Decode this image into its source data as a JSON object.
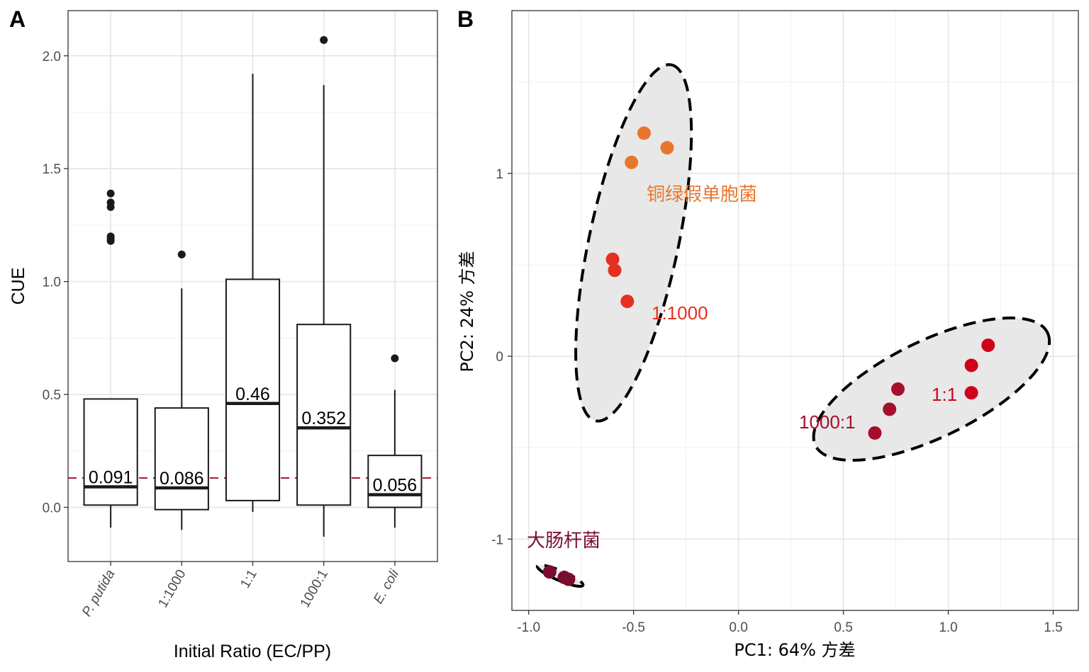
{
  "chart_data": [
    {
      "panel": "A",
      "type": "box",
      "title": "",
      "xlabel": "Initial Ratio (EC/PP)",
      "ylabel": "CUE",
      "ylim": [
        -0.24,
        2.2
      ],
      "yticks": [
        0.0,
        0.5,
        1.0,
        1.5,
        2.0
      ],
      "ytick_labels": [
        "0.0",
        "0.5",
        "1.0",
        "1.5",
        "2.0"
      ],
      "categories": [
        "P. putida",
        "1:1000",
        "1:1",
        "1000:1",
        "E. coli"
      ],
      "boxes": [
        {
          "category": "P. putida",
          "whisker_low": -0.09,
          "q1": 0.01,
          "median": 0.091,
          "q3": 0.48,
          "whisker_high": 0.48,
          "outliers": [
            1.39,
            1.35,
            1.33,
            1.2,
            1.19,
            1.18
          ],
          "median_label": "0.091"
        },
        {
          "category": "1:1000",
          "whisker_low": -0.1,
          "q1": -0.01,
          "median": 0.086,
          "q3": 0.44,
          "whisker_high": 0.97,
          "outliers": [
            1.12
          ],
          "median_label": "0.086"
        },
        {
          "category": "1:1",
          "whisker_low": -0.02,
          "q1": 0.03,
          "median": 0.46,
          "q3": 1.01,
          "whisker_high": 1.92,
          "outliers": [],
          "median_label": "0.46"
        },
        {
          "category": "1000:1",
          "whisker_low": -0.13,
          "q1": 0.01,
          "median": 0.352,
          "q3": 0.81,
          "whisker_high": 1.87,
          "outliers": [
            2.07
          ],
          "median_label": "0.352"
        },
        {
          "category": "E. coli",
          "whisker_low": -0.09,
          "q1": 0.0,
          "median": 0.056,
          "q3": 0.23,
          "whisker_high": 0.52,
          "outliers": [
            0.66
          ],
          "median_label": "0.056"
        }
      ],
      "reference_line": {
        "y": 0.13,
        "color": "#b2182b",
        "style": "dashed"
      }
    },
    {
      "panel": "B",
      "type": "scatter",
      "title": "",
      "xlabel": "PC1: 64% 方差",
      "ylabel": "PC2: 24% 方差",
      "xlim": [
        -1.08,
        1.62
      ],
      "ylim": [
        -1.39,
        1.89
      ],
      "xticks": [
        -1.0,
        -0.5,
        0.0,
        0.5,
        1.0,
        1.5
      ],
      "xtick_labels": [
        "-1.0",
        "-0.5",
        "0.0",
        "0.5",
        "1.0",
        "1.5"
      ],
      "yticks": [
        -1,
        0,
        1
      ],
      "ytick_labels": [
        "-1",
        "0",
        "1"
      ],
      "series": [
        {
          "name": "铜绿假单胞菌",
          "color": "#e8772e",
          "points": [
            [
              -0.45,
              1.22
            ],
            [
              -0.34,
              1.14
            ],
            [
              -0.51,
              1.06
            ]
          ]
        },
        {
          "name": "1:1000",
          "color": "#e6301f",
          "points": [
            [
              -0.6,
              0.53
            ],
            [
              -0.59,
              0.47
            ],
            [
              -0.53,
              0.3
            ]
          ]
        },
        {
          "name": "1:1",
          "color": "#d0021b",
          "points": [
            [
              1.19,
              0.06
            ],
            [
              1.11,
              -0.05
            ],
            [
              1.11,
              -0.2
            ]
          ]
        },
        {
          "name": "1000:1",
          "color": "#a50f2d",
          "points": [
            [
              0.76,
              -0.18
            ],
            [
              0.72,
              -0.29
            ],
            [
              0.65,
              -0.42
            ]
          ]
        },
        {
          "name": "大肠杆菌",
          "color": "#7a0c2e",
          "points": [
            [
              -0.9,
              -1.18
            ],
            [
              -0.83,
              -1.21
            ],
            [
              -0.81,
              -1.22
            ]
          ]
        }
      ],
      "ellipses": [
        {
          "group": "铜绿假单胞菌 + 1:1000",
          "center": [
            -0.5,
            0.62
          ],
          "style": "dashed",
          "fill": "#e8e8e8"
        },
        {
          "group": "1:1 + 1000:1",
          "center": [
            0.92,
            -0.18
          ],
          "style": "dashed",
          "fill": "#e8e8e8"
        },
        {
          "group": "大肠杆菌",
          "center": [
            -0.85,
            -1.2
          ],
          "style": "dashed",
          "fill": "#e8e8e8"
        }
      ],
      "annotations": [
        {
          "text": "铜绿假单胞菌",
          "color": "#e8772e"
        },
        {
          "text": "1:1000",
          "color": "#e6301f"
        },
        {
          "text": "1:1",
          "color": "#d0021b"
        },
        {
          "text": "1000:1",
          "color": "#a50f2d"
        },
        {
          "text": "大肠杆菌",
          "color": "#7a0c2e"
        }
      ]
    }
  ],
  "panel_labels": {
    "a": "A",
    "b": "B"
  }
}
